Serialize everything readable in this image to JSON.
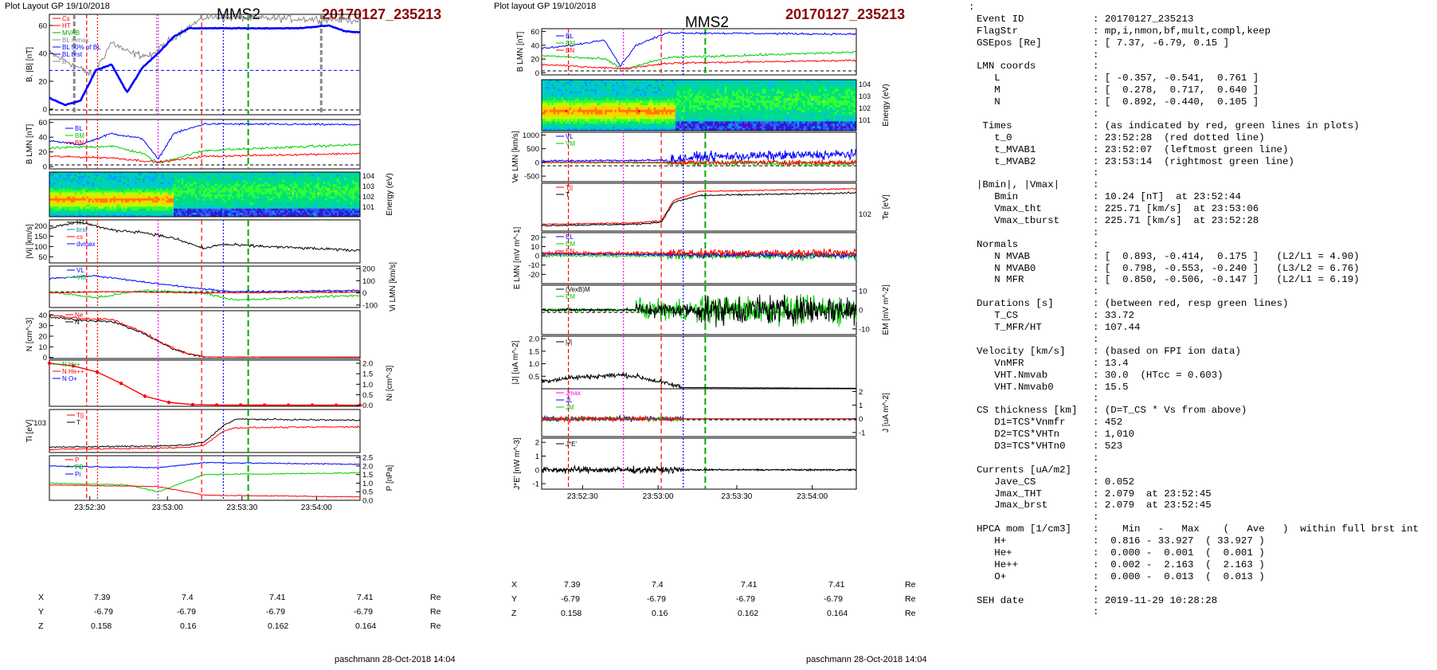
{
  "left": {
    "plot_layout": "Plot Layout GP 19/10/2018",
    "spacecraft": "MMS2",
    "event_title": "20170127_235213",
    "footer": "paschmann 28-Oct-2018 14:04",
    "time_ticks": [
      "23:52:30",
      "23:53:00",
      "23:53:30",
      "23:54:00"
    ],
    "coords": {
      "row_labels": [
        "X",
        "Y",
        "Z"
      ],
      "unit": "Re",
      "values": [
        [
          "7.39",
          "7.4",
          "7.41",
          "7.41"
        ],
        [
          "-6.79",
          "-6.79",
          "-6.79",
          "-6.79"
        ],
        [
          "0.158",
          "0.16",
          "0.162",
          "0.164"
        ]
      ]
    },
    "panels": {
      "b_mag": {
        "ylabel": "B, |B| [nT]",
        "ticks": [
          "0",
          "20",
          "40",
          "60"
        ],
        "legend": [
          "Cs",
          "HT",
          "MVAB",
          "BL mmax",
          "BL 50% of BL",
          "BL brst",
          "B"
        ]
      },
      "b_lmn": {
        "ylabel": "B LMN [nT]",
        "ticks": [
          "0",
          "20",
          "40",
          "60"
        ],
        "legend": [
          "BL",
          "BM",
          "BN"
        ]
      },
      "energy": {
        "ylabel": "Energy (eV)",
        "ticks": [
          "10^4",
          "10^3",
          "10^2",
          "10^1"
        ]
      },
      "vi_mag": {
        "ylabel": "|Vi| [km/s]",
        "ticks": [
          "50",
          "100",
          "150",
          "200"
        ],
        "legend": [
          "HT",
          "brst",
          "cs",
          "dvmax"
        ]
      },
      "vi_lmn": {
        "ylabel": "Vi LMN [km/s]",
        "ticks": [
          "-100",
          "0",
          "100",
          "200"
        ],
        "legend": [
          "VL",
          "VM"
        ]
      },
      "density": {
        "ylabel": "N [cm^-3]",
        "ticks": [
          "0",
          "10",
          "20",
          "30",
          "40"
        ],
        "legend": [
          "Ne",
          "N"
        ]
      },
      "hpca": {
        "ylabel": "Ni [cm^-3]",
        "ticks": [
          "0.0",
          "0.5",
          "1.0",
          "1.5",
          "2.0"
        ],
        "legend": [
          "N He+",
          "N He++",
          "N O+"
        ]
      },
      "ti": {
        "ylabel": "Ti [eV]",
        "ticks": [
          "10^3"
        ],
        "legend": [
          "T||",
          "T"
        ]
      },
      "pressure": {
        "ylabel": "P [nPa]",
        "ticks": [
          "0.0",
          "0.5",
          "1.0",
          "1.5",
          "2.0",
          "2.5"
        ],
        "legend": [
          "P",
          "PB",
          "Pi"
        ]
      }
    }
  },
  "middle": {
    "plot_layout": "Plot layout GP 19/10/2018",
    "spacecraft": "MMS2",
    "event_title": "20170127_235213",
    "footer": "paschmann 28-Oct-2018 14:04",
    "time_ticks": [
      "23:52:30",
      "23:53:00",
      "23:53:30",
      "23:54:00"
    ],
    "coords": {
      "row_labels": [
        "X",
        "Y",
        "Z"
      ],
      "unit": "Re",
      "values": [
        [
          "7.39",
          "7.4",
          "7.41",
          "7.41"
        ],
        [
          "-6.79",
          "-6.79",
          "-6.79",
          "-6.79"
        ],
        [
          "0.158",
          "0.16",
          "0.162",
          "0.164"
        ]
      ]
    },
    "panels": {
      "b_lmn": {
        "ylabel": "B LMN [nT]",
        "ticks": [
          "0",
          "20",
          "40",
          "60"
        ],
        "legend": [
          "BL",
          "BM",
          "BN"
        ]
      },
      "energy": {
        "ylabel": "Energy (eV)",
        "ticks": [
          "10^4",
          "10^3",
          "10^2",
          "10^1"
        ]
      },
      "ve_lmn": {
        "ylabel": "Ve LMN [km/s]",
        "ticks": [
          "-500",
          "0",
          "500",
          "1000"
        ],
        "legend": [
          "VL",
          "VM"
        ]
      },
      "te": {
        "ylabel": "Te [eV]",
        "ticks": [
          "10^2"
        ],
        "legend": [
          "T||",
          "T"
        ]
      },
      "e_lmn": {
        "ylabel": "E LMN [mV m^-1]",
        "ticks": [
          "-20",
          "-10",
          "0",
          "10",
          "20"
        ],
        "legend": [
          "EL",
          "EM",
          "EN"
        ]
      },
      "em": {
        "ylabel": "EM [mV m^-2]",
        "ticks": [
          "-10",
          "0",
          "10"
        ],
        "legend": [
          "(VexB)M",
          "EM"
        ]
      },
      "jmag": {
        "ylabel": "|J| [uA m^-2]",
        "ticks": [
          "0.5",
          "1.0",
          "1.5",
          "2.0"
        ],
        "legend": [
          "|J|"
        ]
      },
      "jlmn": {
        "ylabel": "J [uA m^-2]",
        "ticks": [
          "-1",
          "0",
          "1",
          "2"
        ],
        "legend": [
          "Jmax",
          "JL",
          "JM"
        ]
      },
      "jdote": {
        "ylabel": "J*E' [nW m^-3]",
        "ticks": [
          "-1",
          "0",
          "1",
          "2"
        ],
        "legend": [
          "J*E'"
        ]
      }
    }
  },
  "info": {
    "lines": [
      [
        ":",
        ""
      ],
      [
        "Event ID",
        ": 20170127_235213"
      ],
      [
        "FlagStr",
        ": mp,i,nmon,bf,mult,compl,keep"
      ],
      [
        "GSEpos [Re]",
        ": [ 7.37, -6.79, 0.15 ]"
      ],
      [
        "",
        ":"
      ],
      [
        "LMN coords",
        ":"
      ],
      [
        "   L",
        ": [ -0.357, -0.541,  0.761 ]"
      ],
      [
        "   M",
        ": [  0.278,  0.717,  0.640 ]"
      ],
      [
        "   N",
        ": [  0.892, -0.440,  0.105 ]"
      ],
      [
        "",
        ":"
      ],
      [
        " Times",
        ": (as indicated by red, green lines in plots)"
      ],
      [
        "   t_0",
        ": 23:52:28  (red dotted line)"
      ],
      [
        "   t_MVAB1",
        ": 23:52:07  (leftmost green line)"
      ],
      [
        "   t_MVAB2",
        ": 23:53:14  (rightmost green line)"
      ],
      [
        "",
        ":"
      ],
      [
        "|Bmin|, |Vmax|",
        ":"
      ],
      [
        "   Bmin",
        ": 10.24 [nT]  at 23:52:44"
      ],
      [
        "   Vmax_tht",
        ": 225.71 [km/s]  at 23:53:06"
      ],
      [
        "   Vmax_tburst",
        ": 225.71 [km/s]  at 23:52:28"
      ],
      [
        "",
        ":"
      ],
      [
        "Normals",
        ":"
      ],
      [
        "   N MVAB",
        ": [  0.893, -0.414,  0.175 ]   (L2/L1 = 4.90)"
      ],
      [
        "   N MVAB0",
        ": [  0.798, -0.553, -0.240 ]   (L3/L2 = 6.76)"
      ],
      [
        "   N MFR",
        ": [  0.850, -0.506, -0.147 ]   (L2/L1 = 6.19)"
      ],
      [
        "",
        ":"
      ],
      [
        "Durations [s]",
        ": (between red, resp green lines)"
      ],
      [
        "   T_CS",
        ": 33.72"
      ],
      [
        "   T_MFR/HT",
        ": 107.44"
      ],
      [
        "",
        ":"
      ],
      [
        "Velocity [km/s]",
        ": (based on FPI ion data)"
      ],
      [
        "   VnMFR",
        ": 13.4"
      ],
      [
        "   VHT.Nmvab",
        ": 30.0  (HTcc = 0.603)"
      ],
      [
        "   VHT.Nmvab0",
        ": 15.5"
      ],
      [
        "",
        ":"
      ],
      [
        "CS thickness [km]",
        ": (D=T_CS * Vs from above)"
      ],
      [
        "   D1=TCS*Vnmfr",
        ": 452"
      ],
      [
        "   D2=TCS*VHTn",
        ": 1,010"
      ],
      [
        "   D3=TCS*VHTn0",
        ": 523"
      ],
      [
        "",
        ":"
      ],
      [
        "Currents [uA/m2]",
        ":"
      ],
      [
        "   Jave_CS",
        ": 0.052"
      ],
      [
        "   Jmax_THT",
        ": 2.079  at 23:52:45"
      ],
      [
        "   Jmax_brst",
        ": 2.079  at 23:52:45"
      ],
      [
        "",
        ":"
      ],
      [
        "HPCA mom [1/cm3]",
        ":    Min   -   Max    (   Ave   )  within full brst int"
      ],
      [
        "   H+",
        ":  0.816 - 33.927  ( 33.927 )"
      ],
      [
        "   He+",
        ":  0.000 -  0.001  (  0.001 )"
      ],
      [
        "   He++",
        ":  0.002 -  2.163  (  2.163 )"
      ],
      [
        "   O+",
        ":  0.000 -  0.013  (  0.013 )"
      ],
      [
        "",
        ":"
      ],
      [
        "SEH date",
        ": 2019-11-29 10:28:28"
      ],
      [
        "",
        ":"
      ]
    ]
  },
  "colors": {
    "red_title": "#8b0000",
    "bl": "#0000ff",
    "bm": "#00cc00",
    "bn": "#ff0000",
    "trace": "#000000",
    "magenta": "#ff00ff",
    "gray": "#888888"
  },
  "chart_data": [
    {
      "type": "line",
      "panel": "left-B",
      "series": [
        {
          "name": "B",
          "x": [
            0,
            0.05,
            0.1,
            0.15,
            0.2,
            0.25,
            0.3,
            0.35,
            0.4,
            0.45,
            0.5,
            0.6,
            0.7,
            0.8,
            0.9,
            0.95,
            1.0
          ],
          "values": [
            8,
            3,
            6,
            28,
            32,
            12,
            30,
            40,
            52,
            58,
            58,
            58,
            58,
            58,
            60,
            56,
            55
          ]
        }
      ]
    },
    {
      "type": "line",
      "panel": "left-N",
      "series": [
        {
          "name": "N",
          "x": [
            0,
            0.1,
            0.2,
            0.3,
            0.35,
            0.4,
            0.45,
            0.5,
            1.0
          ],
          "values": [
            38,
            35,
            34,
            23,
            15,
            8,
            3,
            0.5,
            0.3
          ]
        }
      ]
    },
    {
      "type": "line",
      "panel": "left-hpca",
      "series": [
        {
          "name": "N He++",
          "x": [
            0,
            0.05,
            0.12,
            0.2,
            0.28,
            0.36,
            0.42,
            0.5,
            1.0
          ],
          "values": [
            2.0,
            1.95,
            1.75,
            1.35,
            0.55,
            0.2,
            0.05,
            0.01,
            0.0
          ]
        }
      ]
    }
  ]
}
